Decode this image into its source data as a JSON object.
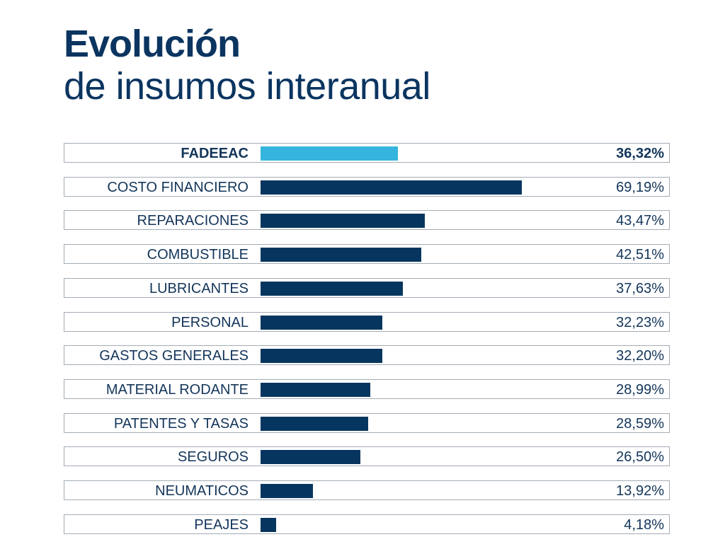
{
  "chart_data": {
    "type": "bar",
    "orientation": "horizontal",
    "title": "Evolución",
    "subtitle": "de insumos interanual",
    "categories": [
      "FADEEAC",
      "COSTO FINANCIERO",
      "REPARACIONES",
      "COMBUSTIBLE",
      "LUBRICANTES",
      "PERSONAL",
      "GASTOS GENERALES",
      "MATERIAL RODANTE",
      "PATENTES Y TASAS",
      "SEGUROS",
      "NEUMATICOS",
      "PEAJES"
    ],
    "values": [
      36.32,
      69.19,
      43.47,
      42.51,
      37.63,
      32.23,
      32.2,
      28.99,
      28.59,
      26.5,
      13.92,
      4.18
    ],
    "value_labels": [
      "36,32%",
      "69,19%",
      "43,47%",
      "42,51%",
      "37,63%",
      "32,23%",
      "32,20%",
      "28,99%",
      "28,59%",
      "26,50%",
      "13,92%",
      "4,18%"
    ],
    "highlight_index": 0,
    "colors": {
      "highlight": "#35b5dd",
      "bar": "#06365f",
      "text": "#13355a",
      "row_border": "#a3acb5"
    },
    "grid": false
  }
}
